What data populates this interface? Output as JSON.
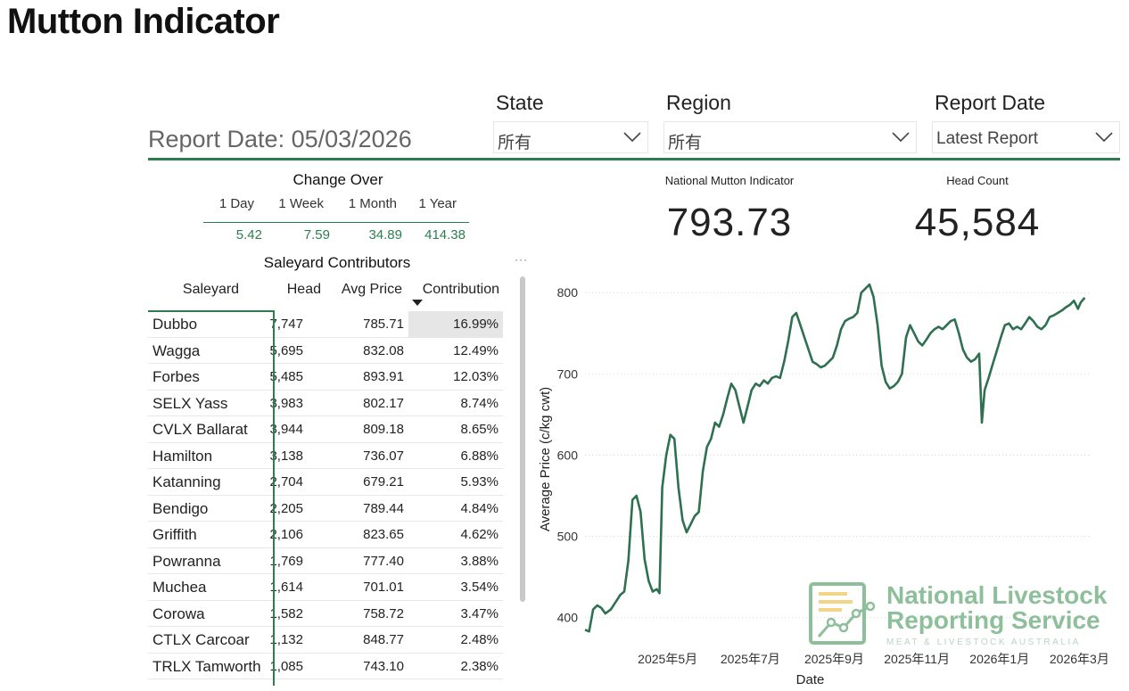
{
  "page": {
    "title": "Mutton Indicator"
  },
  "report_date_text": "Report Date: 05/03/2026",
  "filters": [
    {
      "label": "State",
      "value": "所有"
    },
    {
      "label": "Region",
      "value": "所有"
    },
    {
      "label": "Report Date",
      "value": "Latest Report"
    }
  ],
  "change_over": {
    "title": "Change Over",
    "headers": [
      "1 Day",
      "1 Week",
      "1 Month",
      "1 Year"
    ],
    "values": [
      "5.42",
      "7.59",
      "34.89",
      "414.38"
    ]
  },
  "kpis": {
    "indicator": {
      "label": "National Mutton Indicator",
      "value": "793.73"
    },
    "head_count": {
      "label": "Head Count",
      "value": "45,584"
    }
  },
  "table": {
    "title": "Saleyard Contributors",
    "more": "···",
    "columns": [
      "Saleyard",
      "Head",
      "Avg Price",
      "Contribution"
    ],
    "rows": [
      {
        "name": "Dubbo",
        "head": "7,747",
        "avg": "785.71",
        "contrib": "16.99%"
      },
      {
        "name": "Wagga",
        "head": "5,695",
        "avg": "832.08",
        "contrib": "12.49%"
      },
      {
        "name": "Forbes",
        "head": "5,485",
        "avg": "893.91",
        "contrib": "12.03%"
      },
      {
        "name": "SELX Yass",
        "head": "3,983",
        "avg": "802.17",
        "contrib": "8.74%"
      },
      {
        "name": "CVLX Ballarat",
        "head": "3,944",
        "avg": "809.18",
        "contrib": "8.65%"
      },
      {
        "name": "Hamilton",
        "head": "3,138",
        "avg": "736.07",
        "contrib": "6.88%"
      },
      {
        "name": "Katanning",
        "head": "2,704",
        "avg": "679.21",
        "contrib": "5.93%"
      },
      {
        "name": "Bendigo",
        "head": "2,205",
        "avg": "789.44",
        "contrib": "4.84%"
      },
      {
        "name": "Griffith",
        "head": "2,106",
        "avg": "823.65",
        "contrib": "4.62%"
      },
      {
        "name": "Powranna",
        "head": "1,769",
        "avg": "777.40",
        "contrib": "3.88%"
      },
      {
        "name": "Muchea",
        "head": "1,614",
        "avg": "701.01",
        "contrib": "3.54%"
      },
      {
        "name": "Corowa",
        "head": "1,582",
        "avg": "758.72",
        "contrib": "3.47%"
      },
      {
        "name": "CTLX Carcoar",
        "head": "1,132",
        "avg": "848.77",
        "contrib": "2.48%"
      },
      {
        "name": "TRLX Tamworth",
        "head": "1,085",
        "avg": "743.10",
        "contrib": "2.38%"
      }
    ]
  },
  "chart_data": {
    "type": "line",
    "title": "",
    "xlabel": "Date",
    "ylabel": "Average Price (c/kg cwt)",
    "x_tick_labels": [
      "2025年5月",
      "2025年7月",
      "2025年9月",
      "2025年11月",
      "2026年1月",
      "2026年3月"
    ],
    "y_ticks": [
      400,
      500,
      600,
      700,
      800
    ],
    "ylim": [
      370,
      820
    ],
    "xlim": [
      "2025-03-01",
      "2026-03-08"
    ],
    "grid": true,
    "series": [
      {
        "color": "#2e7050",
        "points": [
          [
            "2025-03-01",
            385
          ],
          [
            "2025-03-04",
            383
          ],
          [
            "2025-03-07",
            410
          ],
          [
            "2025-03-10",
            415
          ],
          [
            "2025-03-13",
            412
          ],
          [
            "2025-03-16",
            405
          ],
          [
            "2025-03-20",
            410
          ],
          [
            "2025-03-24",
            420
          ],
          [
            "2025-03-27",
            428
          ],
          [
            "2025-03-30",
            432
          ],
          [
            "2025-04-02",
            470
          ],
          [
            "2025-04-05",
            545
          ],
          [
            "2025-04-08",
            550
          ],
          [
            "2025-04-11",
            530
          ],
          [
            "2025-04-14",
            472
          ],
          [
            "2025-04-17",
            445
          ],
          [
            "2025-04-20",
            432
          ],
          [
            "2025-04-23",
            435
          ],
          [
            "2025-04-25",
            430
          ],
          [
            "2025-04-27",
            560
          ],
          [
            "2025-04-30",
            600
          ],
          [
            "2025-05-03",
            625
          ],
          [
            "2025-05-06",
            620
          ],
          [
            "2025-05-09",
            560
          ],
          [
            "2025-05-12",
            520
          ],
          [
            "2025-05-15",
            505
          ],
          [
            "2025-05-18",
            515
          ],
          [
            "2025-05-21",
            525
          ],
          [
            "2025-05-24",
            530
          ],
          [
            "2025-05-27",
            580
          ],
          [
            "2025-05-30",
            610
          ],
          [
            "2025-06-02",
            620
          ],
          [
            "2025-06-05",
            640
          ],
          [
            "2025-06-08",
            635
          ],
          [
            "2025-06-11",
            650
          ],
          [
            "2025-06-14",
            670
          ],
          [
            "2025-06-17",
            688
          ],
          [
            "2025-06-20",
            680
          ],
          [
            "2025-06-23",
            660
          ],
          [
            "2025-06-26",
            640
          ],
          [
            "2025-06-29",
            660
          ],
          [
            "2025-07-02",
            680
          ],
          [
            "2025-07-05",
            688
          ],
          [
            "2025-07-08",
            685
          ],
          [
            "2025-07-11",
            692
          ],
          [
            "2025-07-14",
            688
          ],
          [
            "2025-07-17",
            695
          ],
          [
            "2025-07-20",
            697
          ],
          [
            "2025-07-23",
            695
          ],
          [
            "2025-07-26",
            715
          ],
          [
            "2025-07-29",
            740
          ],
          [
            "2025-08-01",
            770
          ],
          [
            "2025-08-04",
            775
          ],
          [
            "2025-08-07",
            760
          ],
          [
            "2025-08-10",
            745
          ],
          [
            "2025-08-13",
            730
          ],
          [
            "2025-08-16",
            715
          ],
          [
            "2025-08-19",
            712
          ],
          [
            "2025-08-22",
            708
          ],
          [
            "2025-08-25",
            710
          ],
          [
            "2025-08-28",
            715
          ],
          [
            "2025-08-31",
            720
          ],
          [
            "2025-09-03",
            735
          ],
          [
            "2025-09-06",
            755
          ],
          [
            "2025-09-09",
            765
          ],
          [
            "2025-09-12",
            768
          ],
          [
            "2025-09-15",
            770
          ],
          [
            "2025-09-18",
            775
          ],
          [
            "2025-09-21",
            800
          ],
          [
            "2025-09-24",
            805
          ],
          [
            "2025-09-27",
            810
          ],
          [
            "2025-09-30",
            795
          ],
          [
            "2025-10-03",
            760
          ],
          [
            "2025-10-06",
            710
          ],
          [
            "2025-10-09",
            690
          ],
          [
            "2025-10-12",
            682
          ],
          [
            "2025-10-15",
            685
          ],
          [
            "2025-10-18",
            690
          ],
          [
            "2025-10-21",
            700
          ],
          [
            "2025-10-24",
            745
          ],
          [
            "2025-10-27",
            760
          ],
          [
            "2025-10-30",
            750
          ],
          [
            "2025-11-02",
            740
          ],
          [
            "2025-11-05",
            735
          ],
          [
            "2025-11-08",
            742
          ],
          [
            "2025-11-11",
            750
          ],
          [
            "2025-11-14",
            755
          ],
          [
            "2025-11-17",
            758
          ],
          [
            "2025-11-20",
            755
          ],
          [
            "2025-11-23",
            760
          ],
          [
            "2025-11-26",
            765
          ],
          [
            "2025-11-29",
            767
          ],
          [
            "2025-12-02",
            750
          ],
          [
            "2025-12-05",
            730
          ],
          [
            "2025-12-08",
            720
          ],
          [
            "2025-12-11",
            715
          ],
          [
            "2025-12-14",
            718
          ],
          [
            "2025-12-17",
            725
          ],
          [
            "2025-12-19",
            640
          ],
          [
            "2025-12-21",
            680
          ],
          [
            "2025-12-24",
            695
          ],
          [
            "2025-12-27",
            712
          ],
          [
            "2025-12-30",
            728
          ],
          [
            "2026-01-02",
            745
          ],
          [
            "2026-01-05",
            760
          ],
          [
            "2026-01-08",
            762
          ],
          [
            "2026-01-11",
            755
          ],
          [
            "2026-01-14",
            758
          ],
          [
            "2026-01-17",
            755
          ],
          [
            "2026-01-20",
            762
          ],
          [
            "2026-01-23",
            770
          ],
          [
            "2026-01-26",
            765
          ],
          [
            "2026-01-29",
            758
          ],
          [
            "2026-02-01",
            755
          ],
          [
            "2026-02-04",
            760
          ],
          [
            "2026-02-07",
            770
          ],
          [
            "2026-02-10",
            772
          ],
          [
            "2026-02-13",
            775
          ],
          [
            "2026-02-16",
            778
          ],
          [
            "2026-02-19",
            782
          ],
          [
            "2026-02-22",
            785
          ],
          [
            "2026-02-25",
            790
          ],
          [
            "2026-02-28",
            780
          ],
          [
            "2026-03-02",
            788
          ],
          [
            "2026-03-05",
            793.73
          ]
        ]
      }
    ]
  },
  "logo": {
    "line1": "National Livestock",
    "line2": "Reporting Service",
    "line3": "MEAT & LIVESTOCK AUSTRALIA",
    "color": "#8dbf9b"
  },
  "colors": {
    "accent": "#2e7d4f",
    "highlight": "#e6e6e6"
  }
}
